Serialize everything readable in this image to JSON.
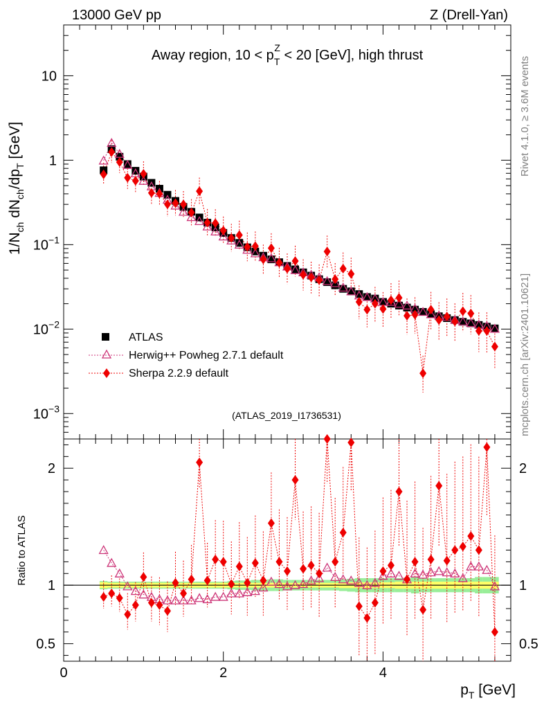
{
  "header": {
    "left": "13000 GeV pp",
    "right": "Z (Drell-Yan)"
  },
  "side_texts": {
    "rivet": "Rivet 4.1.0, ≥ 3.6M events",
    "mcplots": "mcplots.cern.ch [arXiv:2401.10621]"
  },
  "colors": {
    "data": "#000000",
    "herwig": "#cc3377",
    "sherpa": "#ee0000",
    "band_inner": "#ffff66",
    "band_outer": "#99ee99"
  },
  "chart_data": [
    {
      "type": "scatter",
      "panel": "main",
      "title": "Away region, 10 < p_T^Z < 20 [GeV], high thrust",
      "title_parts": {
        "t1": "Away region, 10 < p",
        "sub": "T",
        "sup": "Z",
        "t2": " < 20 [GeV], high thrust"
      },
      "ylabel": "1/N_ch dN_ch/dp_T [GeV]",
      "ylabel_parts": {
        "a": "1/N",
        "b": "ch",
        "c": " dN",
        "d": "ch",
        "e": "/dp",
        "f": "T",
        "g": " [GeV]"
      },
      "yscale": "log",
      "ylim": [
        0.0005,
        40
      ],
      "xlim": [
        0,
        5.6
      ],
      "yticks": [
        {
          "v": 10,
          "base": "10",
          "exp": ""
        },
        {
          "v": 1,
          "base": "1",
          "exp": ""
        },
        {
          "v": 0.1,
          "base": "10",
          "exp": "−1"
        },
        {
          "v": 0.01,
          "base": "10",
          "exp": "−2"
        },
        {
          "v": 0.001,
          "base": "10",
          "exp": "−3"
        }
      ],
      "watermark": "(ATLAS_2019_I1736531)",
      "x": [
        0.5,
        0.6,
        0.7,
        0.8,
        0.9,
        1.0,
        1.1,
        1.2,
        1.3,
        1.4,
        1.5,
        1.6,
        1.7,
        1.8,
        1.9,
        2.0,
        2.1,
        2.2,
        2.3,
        2.4,
        2.5,
        2.6,
        2.7,
        2.8,
        2.9,
        3.0,
        3.1,
        3.2,
        3.3,
        3.4,
        3.5,
        3.6,
        3.7,
        3.8,
        3.9,
        4.0,
        4.1,
        4.2,
        4.3,
        4.4,
        4.5,
        4.6,
        4.7,
        4.8,
        4.9,
        5.0,
        5.1,
        5.2,
        5.3,
        5.4
      ],
      "series": [
        {
          "name": "ATLAS",
          "marker": "square",
          "values": [
            0.76,
            1.35,
            1.1,
            0.9,
            0.75,
            0.64,
            0.54,
            0.46,
            0.39,
            0.33,
            0.28,
            0.245,
            0.21,
            0.182,
            0.16,
            0.138,
            0.12,
            0.105,
            0.093,
            0.083,
            0.074,
            0.067,
            0.062,
            0.056,
            0.051,
            0.047,
            0.043,
            0.039,
            0.036,
            0.033,
            0.03,
            0.028,
            0.026,
            0.024,
            0.023,
            0.021,
            0.02,
            0.019,
            0.018,
            0.017,
            0.016,
            0.015,
            0.0142,
            0.0135,
            0.0128,
            0.0122,
            0.0117,
            0.0112,
            0.0107,
            0.0102
          ]
        },
        {
          "name": "Herwig++ Powheg 2.7.1 default",
          "marker": "open-triangle",
          "values": [
            0.99,
            1.6,
            1.19,
            0.88,
            0.7,
            0.57,
            0.49,
            0.41,
            0.34,
            0.29,
            0.245,
            0.212,
            0.19,
            0.164,
            0.143,
            0.125,
            0.112,
            0.1,
            0.087,
            0.079,
            0.071,
            0.069,
            0.062,
            0.055,
            0.05,
            0.047,
            0.044,
            0.041,
            0.037,
            0.035,
            0.031,
            0.028,
            0.025,
            0.024,
            0.023,
            0.021,
            0.021,
            0.02,
            0.019,
            0.0175,
            0.016,
            0.015,
            0.0145,
            0.014,
            0.0129,
            0.0123,
            0.0118,
            0.0113,
            0.0109,
            0.0101
          ]
        },
        {
          "name": "Sherpa 2.2.9 default",
          "marker": "diamond",
          "values": [
            0.68,
            1.25,
            0.95,
            0.62,
            0.57,
            0.69,
            0.41,
            0.4,
            0.3,
            0.31,
            0.3,
            0.24,
            0.43,
            0.182,
            0.18,
            0.147,
            0.12,
            0.13,
            0.094,
            0.096,
            0.067,
            0.091,
            0.061,
            0.052,
            0.064,
            0.044,
            0.041,
            0.038,
            0.083,
            0.039,
            0.052,
            0.045,
            0.021,
            0.017,
            0.02,
            0.0173,
            0.022,
            0.0235,
            0.0144,
            0.0148,
            0.003,
            0.017,
            0.0128,
            0.0141,
            0.0123,
            0.0163,
            0.0153,
            0.0095,
            0.0095,
            0.0062
          ]
        }
      ]
    },
    {
      "type": "scatter",
      "panel": "ratio",
      "ylabel": "Ratio to ATLAS",
      "xlabel": "p_T [GeV]",
      "xlabel_parts": {
        "a": "p",
        "b": "T",
        "c": " [GeV]"
      },
      "xlim": [
        0,
        5.6
      ],
      "ylim": [
        0.35,
        2.25
      ],
      "yticks": [
        0.5,
        1,
        2
      ],
      "ytick_labels": [
        "0.5",
        "1",
        "2"
      ],
      "xticks": [
        0,
        2,
        4
      ],
      "xtick_labels": [
        "0",
        "2",
        "4"
      ],
      "band_inner_halfwidth": [
        0.025,
        0.02,
        0.02,
        0.02,
        0.02,
        0.02,
        0.02,
        0.02,
        0.02,
        0.02,
        0.02,
        0.02,
        0.02,
        0.02,
        0.02,
        0.02,
        0.02,
        0.02,
        0.02,
        0.02,
        0.02,
        0.02,
        0.02,
        0.02,
        0.02,
        0.02,
        0.02,
        0.02,
        0.02,
        0.02,
        0.025,
        0.025,
        0.025,
        0.025,
        0.025,
        0.025,
        0.025,
        0.03,
        0.03,
        0.03,
        0.03,
        0.03,
        0.03,
        0.03,
        0.03,
        0.03,
        0.03,
        0.03,
        0.03,
        0.03
      ],
      "band_outer_halfwidth": [
        0.035,
        0.03,
        0.03,
        0.03,
        0.03,
        0.03,
        0.03,
        0.03,
        0.03,
        0.03,
        0.03,
        0.03,
        0.03,
        0.03,
        0.03,
        0.03,
        0.035,
        0.04,
        0.04,
        0.045,
        0.045,
        0.05,
        0.05,
        0.045,
        0.045,
        0.045,
        0.045,
        0.045,
        0.045,
        0.045,
        0.05,
        0.055,
        0.06,
        0.06,
        0.06,
        0.06,
        0.06,
        0.06,
        0.06,
        0.07,
        0.06,
        0.06,
        0.06,
        0.06,
        0.06,
        0.06,
        0.06,
        0.07,
        0.07,
        0.07
      ],
      "x": [
        0.5,
        0.6,
        0.7,
        0.8,
        0.9,
        1.0,
        1.1,
        1.2,
        1.3,
        1.4,
        1.5,
        1.6,
        1.7,
        1.8,
        1.9,
        2.0,
        2.1,
        2.2,
        2.3,
        2.4,
        2.5,
        2.6,
        2.7,
        2.8,
        2.9,
        3.0,
        3.1,
        3.2,
        3.3,
        3.4,
        3.5,
        3.6,
        3.7,
        3.8,
        3.9,
        4.0,
        4.1,
        4.2,
        4.3,
        4.4,
        4.5,
        4.6,
        4.7,
        4.8,
        4.9,
        5.0,
        5.1,
        5.2,
        5.3,
        5.4
      ],
      "series": [
        {
          "name": "Herwig++ Powheg 2.7.1 default",
          "marker": "open-triangle",
          "values": [
            1.3,
            1.19,
            1.1,
            0.99,
            0.95,
            0.92,
            0.9,
            0.88,
            0.87,
            0.87,
            0.87,
            0.87,
            0.89,
            0.88,
            0.9,
            0.9,
            0.93,
            0.93,
            0.94,
            0.95,
            0.98,
            1.03,
            1.01,
            0.99,
            1.0,
            1.01,
            1.04,
            1.06,
            1.15,
            1.07,
            1.05,
            1.04,
            1.02,
            1.0,
            1.02,
            1.08,
            1.1,
            1.08,
            1.05,
            1.1,
            1.09,
            1.11,
            1.12,
            1.11,
            1.1,
            1.06,
            1.16,
            1.16,
            1.13,
            0.99
          ]
        },
        {
          "name": "Sherpa 2.2.9 default",
          "marker": "diamond",
          "values": [
            0.9,
            0.93,
            0.89,
            0.75,
            0.83,
            1.07,
            0.85,
            0.83,
            0.78,
            1.02,
            0.93,
            1.05,
            2.05,
            1.04,
            1.22,
            1.2,
            1.01,
            1.16,
            1.02,
            1.19,
            1.04,
            1.53,
            1.2,
            1.12,
            1.9,
            1.14,
            1.17,
            1.1,
            2.25,
            1.2,
            1.45,
            2.22,
            0.82,
            0.72,
            0.85,
            1.12,
            1.17,
            1.8,
            1.05,
            1.2,
            0.79,
            1.22,
            1.85,
            1.21,
            1.3,
            1.33,
            1.42,
            1.3,
            2.18,
            0.6
          ]
        }
      ]
    }
  ],
  "legend": {
    "entries": [
      "ATLAS",
      "Herwig++ Powheg 2.7.1 default",
      "Sherpa 2.2.9 default"
    ]
  }
}
